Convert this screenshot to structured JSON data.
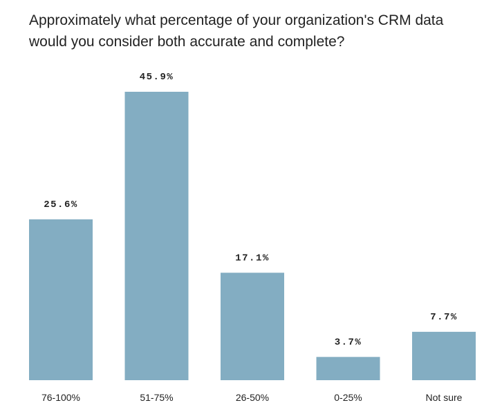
{
  "chart_data": {
    "type": "bar",
    "title": "Approximately what percentage of your organization's CRM data would you consider both accurate and complete?",
    "categories": [
      "76-100%",
      "51-75%",
      "26-50%",
      "0-25%",
      "Not sure"
    ],
    "values": [
      25.6,
      45.9,
      17.1,
      3.7,
      7.7
    ],
    "value_labels": [
      "25.6%",
      "45.9%",
      "17.1%",
      "3.7%",
      "7.7%"
    ],
    "xlabel": "",
    "ylabel": "",
    "ylim": [
      0,
      45.9
    ],
    "grid": false,
    "bar_color": "#83adc2"
  }
}
